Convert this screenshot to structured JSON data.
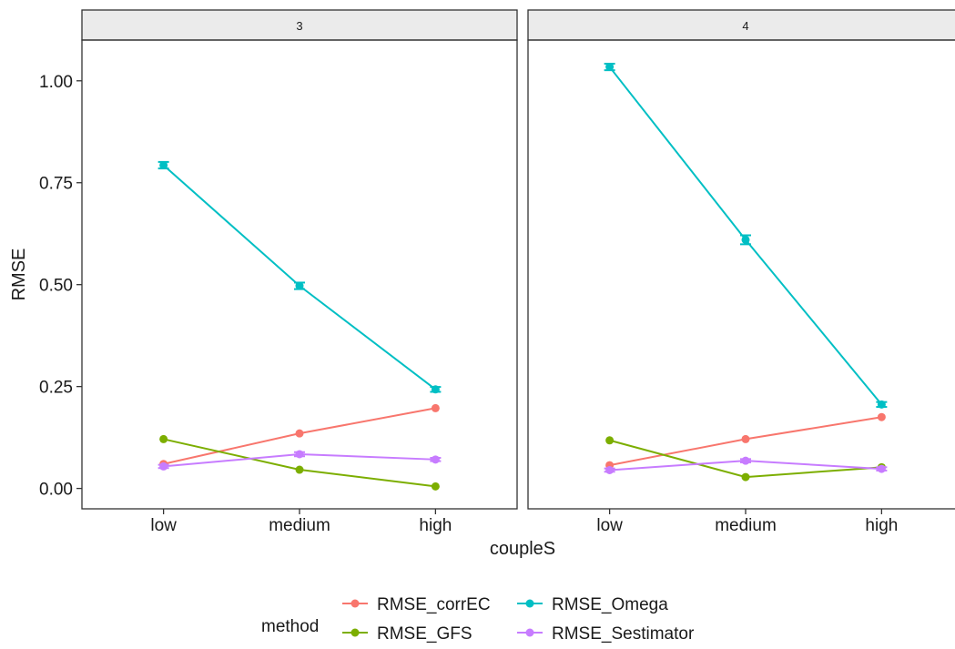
{
  "chart_data": {
    "type": "line",
    "facet_variable_values": [
      "3",
      "4"
    ],
    "categories": [
      "low",
      "medium",
      "high"
    ],
    "xlabel": "coupleS",
    "ylabel": "RMSE",
    "ylim": [
      -0.05,
      1.1
    ],
    "yticks": [
      "0.00",
      "0.25",
      "0.50",
      "0.75",
      "1.00"
    ],
    "grid": false,
    "legend": {
      "title": "method",
      "placement": "bottom",
      "entries": [
        "RMSE_corrEC",
        "RMSE_Omega",
        "RMSE_GFS",
        "RMSE_Sestimator"
      ]
    },
    "colors": {
      "RMSE_corrEC": "#F8766D",
      "RMSE_GFS": "#7CAE00",
      "RMSE_Omega": "#00BFC4",
      "RMSE_Sestimator": "#C77CFF"
    },
    "panels": [
      {
        "facet": "3",
        "series": [
          {
            "name": "RMSE_corrEC",
            "values": [
              0.06,
              0.135,
              0.197
            ]
          },
          {
            "name": "RMSE_GFS",
            "values": [
              0.121,
              0.046,
              0.005
            ]
          },
          {
            "name": "RMSE_Omega",
            "values": [
              0.793,
              0.497,
              0.243
            ],
            "error": [
              0.008,
              0.008,
              0.006
            ]
          },
          {
            "name": "RMSE_Sestimator",
            "values": [
              0.054,
              0.084,
              0.071
            ],
            "error": [
              0.004,
              0.005,
              0.004
            ]
          }
        ]
      },
      {
        "facet": "4",
        "series": [
          {
            "name": "RMSE_corrEC",
            "values": [
              0.057,
              0.121,
              0.175
            ]
          },
          {
            "name": "RMSE_GFS",
            "values": [
              0.118,
              0.028,
              0.052
            ]
          },
          {
            "name": "RMSE_Omega",
            "values": [
              1.034,
              0.61,
              0.206
            ],
            "error": [
              0.008,
              0.011,
              0.006
            ]
          },
          {
            "name": "RMSE_Sestimator",
            "values": [
              0.045,
              0.068,
              0.048
            ],
            "error": [
              0.004,
              0.004,
              0.004
            ]
          }
        ]
      }
    ]
  }
}
